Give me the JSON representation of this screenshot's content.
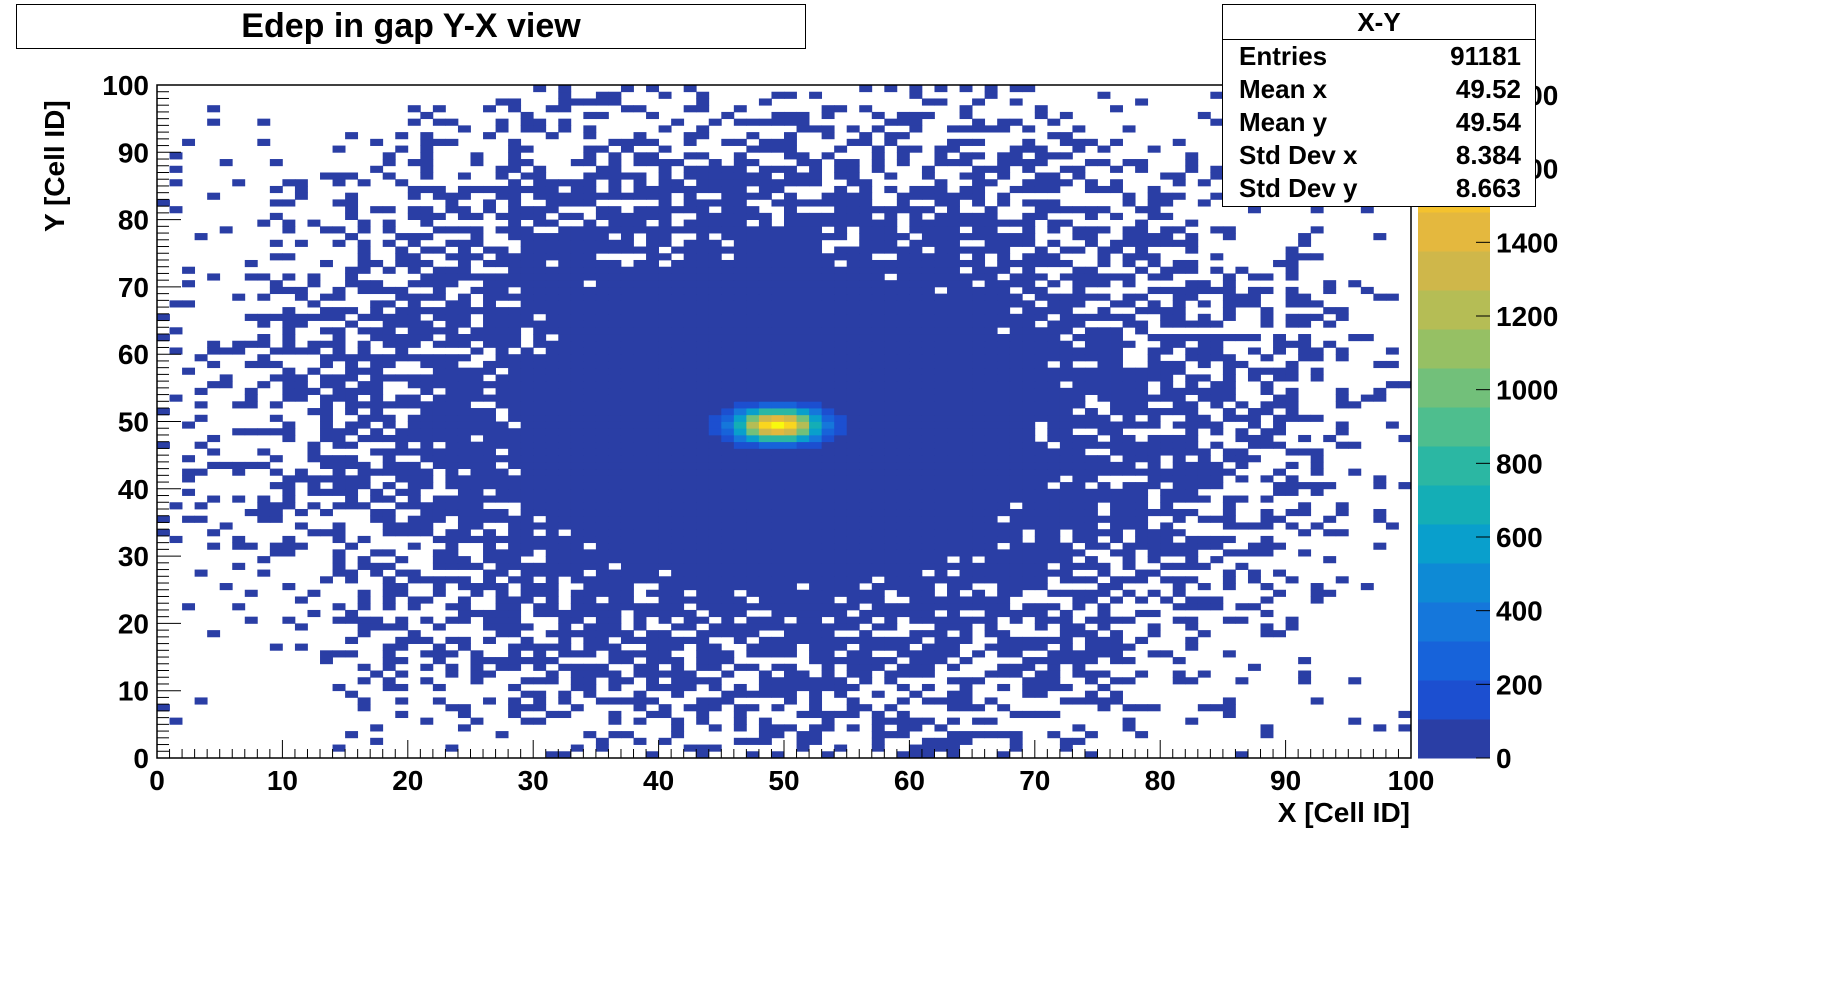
{
  "chart_data": {
    "type": "heatmap",
    "title": "Edep in gap Y-X view",
    "xlabel": "X [Cell ID]",
    "ylabel": "Y [Cell ID]",
    "xlim": [
      0,
      100
    ],
    "ylim": [
      0,
      100
    ],
    "x_ticks": [
      "0",
      "10",
      "20",
      "30",
      "40",
      "50",
      "60",
      "70",
      "80",
      "90",
      "100"
    ],
    "y_ticks": [
      "0",
      "10",
      "20",
      "30",
      "40",
      "50",
      "60",
      "70",
      "80",
      "90",
      "100"
    ],
    "z_range": [
      0,
      1800
    ],
    "z_ticks": [
      "0",
      "200",
      "400",
      "600",
      "800",
      "1000",
      "1200",
      "1400",
      "1600",
      "1800"
    ],
    "bins": 100,
    "peak": {
      "x": 49.5,
      "y": 49.5,
      "value": 1800
    },
    "occupancy": {
      "core_radius_x": 21,
      "core_radius_y": 24
    },
    "colors": {
      "background": "#ffffff",
      "palette": [
        "#2a3ea5",
        "#1c4fd0",
        "#1763da",
        "#1577db",
        "#0e8ad5",
        "#099fcc",
        "#14aeb6",
        "#2bb7a3",
        "#4ebe8e",
        "#72c07a",
        "#96c064",
        "#b5bd55",
        "#cfb74a",
        "#e4b83e",
        "#f4c22e",
        "#f9d61f",
        "#f9f90e"
      ]
    },
    "legend": "stats box top-right",
    "stats": {
      "title": "X-Y",
      "rows": [
        {
          "label": "Entries",
          "value": "91181"
        },
        {
          "label": "Mean x",
          "value": "49.52"
        },
        {
          "label": "Mean y",
          "value": "49.54"
        },
        {
          "label": "Std Dev x",
          "value": "8.384"
        },
        {
          "label": "Std Dev y",
          "value": "8.663"
        }
      ]
    }
  }
}
